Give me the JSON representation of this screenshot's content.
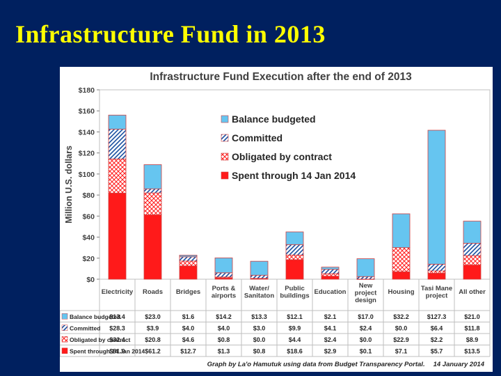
{
  "slide": {
    "title": "Infrastructure Fund in 2013"
  },
  "colors": {
    "spent": "#ff1a1a",
    "obligated": "#ff1a1a",
    "committed": "#1a4fa0",
    "balance": "#66c5f0",
    "slide_bg": "#00205f",
    "title": "#ffff00"
  },
  "chart_data": {
    "type": "bar",
    "stacked": true,
    "title": "Infrastructure Fund Execution after the end of 2013",
    "ylabel": "Million U.S. dollars",
    "ylim": [
      0,
      180
    ],
    "yticks": [
      0,
      20,
      40,
      60,
      80,
      100,
      120,
      140,
      160,
      180
    ],
    "ytick_labels": [
      "$0",
      "$20",
      "$40",
      "$60",
      "$80",
      "$100",
      "$120",
      "$140",
      "$160",
      "$180"
    ],
    "categories": [
      [
        "Electricity"
      ],
      [
        "Roads"
      ],
      [
        "Bridges"
      ],
      [
        "Ports &",
        "airports"
      ],
      [
        "Water/",
        "Sanitaton"
      ],
      [
        "Public",
        "buildings"
      ],
      [
        "Education"
      ],
      [
        "New",
        "project",
        "design"
      ],
      [
        "Housing"
      ],
      [
        "Tasi Mane",
        "project"
      ],
      [
        "All other"
      ]
    ],
    "series": [
      {
        "name": "Spent through 14 Jan 2014",
        "key": "spent",
        "values": [
          81.9,
          61.2,
          12.7,
          1.3,
          0.8,
          18.6,
          2.9,
          0.1,
          7.1,
          5.7,
          13.5
        ],
        "labels": [
          "$81.9",
          "$61.2",
          "$12.7",
          "$1.3",
          "$0.8",
          "$18.6",
          "$2.9",
          "$0.1",
          "$7.1",
          "$5.7",
          "$13.5"
        ]
      },
      {
        "name": "Obligated by contract",
        "key": "obligated",
        "values": [
          32.4,
          20.8,
          4.6,
          0.8,
          0.0,
          4.4,
          2.4,
          0.0,
          22.9,
          2.2,
          8.9
        ],
        "labels": [
          "$32.4",
          "$20.8",
          "$4.6",
          "$0.8",
          "$0.0",
          "$4.4",
          "$2.4",
          "$0.0",
          "$22.9",
          "$2.2",
          "$8.9"
        ]
      },
      {
        "name": "Committed",
        "key": "committed",
        "values": [
          28.3,
          3.9,
          4.0,
          4.0,
          3.0,
          9.9,
          4.1,
          2.4,
          0.0,
          6.4,
          11.8
        ],
        "labels": [
          "$28.3",
          "$3.9",
          "$4.0",
          "$4.0",
          "$3.0",
          "$9.9",
          "$4.1",
          "$2.4",
          "$0.0",
          "$6.4",
          "$11.8"
        ]
      },
      {
        "name": "Balance budgeted",
        "key": "balance",
        "values": [
          13.4,
          23.0,
          1.6,
          14.2,
          13.3,
          12.1,
          2.1,
          17.0,
          32.2,
          127.3,
          21.0
        ],
        "labels": [
          "$13.4",
          "$23.0",
          "$1.6",
          "$14.2",
          "$13.3",
          "$12.1",
          "$2.1",
          "$17.0",
          "$32.2",
          "$127.3",
          "$21.0"
        ]
      }
    ],
    "legend": {
      "placement": "top-center",
      "entries": [
        "Balance budgeted",
        "Committed",
        "Obligated by contract",
        "Spent through 14 Jan 2014"
      ]
    },
    "table_row_order": [
      "balance",
      "committed",
      "obligated",
      "spent"
    ],
    "table_row_labels": [
      "Balance budgeted",
      "Committed",
      "Obligated by contract",
      "Spent through 14 Jan 2014"
    ],
    "footnote_main": "Graph by La'o Hamutuk using data from Budget Transparency Portal.",
    "footnote_date": "14 January 2014"
  }
}
